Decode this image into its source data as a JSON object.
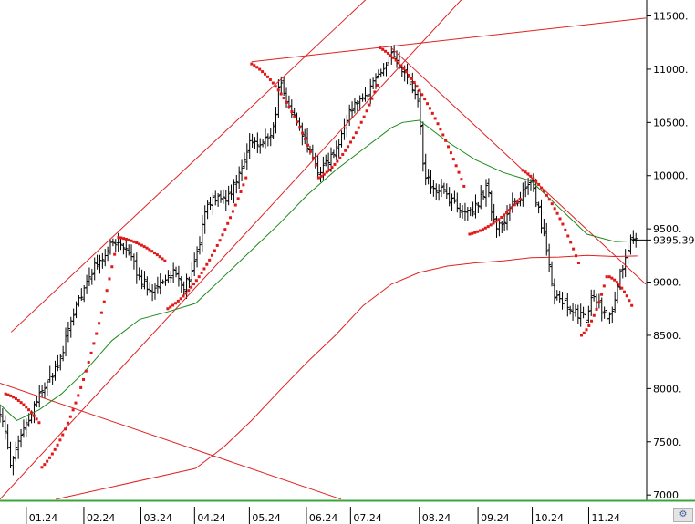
{
  "chart_data": {
    "type": "line",
    "price_label": "9395.39",
    "y_axis": {
      "ylim": [
        6950,
        11650
      ],
      "ticks": [
        {
          "value": 11500,
          "label": "11500."
        },
        {
          "value": 11000,
          "label": "11000."
        },
        {
          "value": 10500,
          "label": "10500."
        },
        {
          "value": 10000,
          "label": "10000."
        },
        {
          "value": 9500,
          "label": "9500."
        },
        {
          "value": 9000,
          "label": "9000."
        },
        {
          "value": 8500,
          "label": "8500."
        },
        {
          "value": 8000,
          "label": "8000."
        },
        {
          "value": 7500,
          "label": "7500."
        },
        {
          "value": 7000,
          "label": "7000"
        }
      ]
    },
    "x_axis": {
      "range_months": [
        0,
        11.55
      ],
      "ticks": [
        {
          "pos": 0.47,
          "label": "01.24"
        },
        {
          "pos": 1.5,
          "label": "02.24"
        },
        {
          "pos": 2.52,
          "label": "03.24"
        },
        {
          "pos": 3.48,
          "label": "04.24"
        },
        {
          "pos": 4.46,
          "label": "05.24"
        },
        {
          "pos": 5.48,
          "label": "06.24"
        },
        {
          "pos": 6.27,
          "label": "07.24"
        },
        {
          "pos": 7.5,
          "label": "08.24"
        },
        {
          "pos": 8.55,
          "label": "09.24"
        },
        {
          "pos": 9.52,
          "label": "10.24"
        },
        {
          "pos": 10.53,
          "label": "11.24"
        }
      ]
    },
    "price_keypoints": [
      [
        0.0,
        7780
      ],
      [
        0.1,
        7550
      ],
      [
        0.2,
        7280
      ],
      [
        0.35,
        7500
      ],
      [
        0.5,
        7700
      ],
      [
        0.7,
        7950
      ],
      [
        0.9,
        8100
      ],
      [
        1.1,
        8300
      ],
      [
        1.3,
        8700
      ],
      [
        1.5,
        8950
      ],
      [
        1.7,
        9150
      ],
      [
        1.9,
        9300
      ],
      [
        2.1,
        9380
      ],
      [
        2.3,
        9250
      ],
      [
        2.5,
        9050
      ],
      [
        2.7,
        8900
      ],
      [
        2.9,
        9000
      ],
      [
        3.1,
        9100
      ],
      [
        3.3,
        8950
      ],
      [
        3.5,
        9200
      ],
      [
        3.7,
        9700
      ],
      [
        3.9,
        9800
      ],
      [
        4.1,
        9800
      ],
      [
        4.3,
        10050
      ],
      [
        4.5,
        10350
      ],
      [
        4.7,
        10300
      ],
      [
        4.9,
        10450
      ],
      [
        5.0,
        10900
      ],
      [
        5.1,
        10700
      ],
      [
        5.3,
        10550
      ],
      [
        5.5,
        10250
      ],
      [
        5.7,
        10050
      ],
      [
        5.9,
        10150
      ],
      [
        6.1,
        10350
      ],
      [
        6.3,
        10650
      ],
      [
        6.5,
        10700
      ],
      [
        6.7,
        10900
      ],
      [
        6.9,
        11050
      ],
      [
        7.0,
        11150
      ],
      [
        7.1,
        11050
      ],
      [
        7.3,
        10900
      ],
      [
        7.45,
        10700
      ],
      [
        7.5,
        10650
      ],
      [
        7.55,
        10100
      ],
      [
        7.7,
        9900
      ],
      [
        7.9,
        9850
      ],
      [
        8.1,
        9750
      ],
      [
        8.3,
        9650
      ],
      [
        8.5,
        9700
      ],
      [
        8.7,
        9900
      ],
      [
        8.85,
        9550
      ],
      [
        9.0,
        9500
      ],
      [
        9.1,
        9700
      ],
      [
        9.3,
        9800
      ],
      [
        9.5,
        9900
      ],
      [
        9.6,
        9750
      ],
      [
        9.8,
        9250
      ],
      [
        9.9,
        8900
      ],
      [
        10.1,
        8800
      ],
      [
        10.3,
        8700
      ],
      [
        10.5,
        8650
      ],
      [
        10.6,
        8900
      ],
      [
        10.8,
        8700
      ],
      [
        10.9,
        8650
      ],
      [
        11.0,
        8850
      ],
      [
        11.2,
        9300
      ],
      [
        11.35,
        9450
      ],
      [
        11.4,
        9400
      ]
    ],
    "ma_short_points": [
      [
        0.0,
        7850
      ],
      [
        0.3,
        7700
      ],
      [
        0.7,
        7800
      ],
      [
        1.1,
        7950
      ],
      [
        1.5,
        8150
      ],
      [
        2.0,
        8450
      ],
      [
        2.5,
        8650
      ],
      [
        3.0,
        8720
      ],
      [
        3.5,
        8800
      ],
      [
        4.0,
        9050
      ],
      [
        4.5,
        9300
      ],
      [
        5.0,
        9550
      ],
      [
        5.5,
        9820
      ],
      [
        6.0,
        10050
      ],
      [
        6.5,
        10250
      ],
      [
        7.0,
        10450
      ],
      [
        7.2,
        10500
      ],
      [
        7.5,
        10520
      ],
      [
        8.0,
        10320
      ],
      [
        8.5,
        10150
      ],
      [
        9.0,
        10030
      ],
      [
        9.5,
        9950
      ],
      [
        10.0,
        9700
      ],
      [
        10.5,
        9450
      ],
      [
        11.0,
        9380
      ],
      [
        11.4,
        9390
      ]
    ],
    "ma_long_points": [
      [
        3.5,
        7250
      ],
      [
        4.0,
        7450
      ],
      [
        4.5,
        7700
      ],
      [
        5.0,
        7980
      ],
      [
        5.5,
        8250
      ],
      [
        6.0,
        8500
      ],
      [
        6.5,
        8780
      ],
      [
        7.0,
        8980
      ],
      [
        7.5,
        9090
      ],
      [
        8.0,
        9150
      ],
      [
        8.5,
        9180
      ],
      [
        9.0,
        9200
      ],
      [
        9.5,
        9230
      ],
      [
        10.0,
        9235
      ],
      [
        10.5,
        9250
      ],
      [
        11.0,
        9240
      ],
      [
        11.4,
        9245
      ]
    ],
    "sar_segments": [
      {
        "x0": 0.1,
        "x1": 0.7,
        "s0": 7950,
        "s1": 7680
      },
      {
        "x0": 0.75,
        "x1": 2.05,
        "s0": 7260,
        "s1": 9260
      },
      {
        "x0": 2.12,
        "x1": 2.95,
        "s0": 9420,
        "s1": 9200
      },
      {
        "x0": 3.0,
        "x1": 4.4,
        "s0": 8750,
        "s1": 9980
      },
      {
        "x0": 4.5,
        "x1": 5.65,
        "s0": 11050,
        "s1": 10100
      },
      {
        "x0": 5.7,
        "x1": 6.75,
        "s0": 9980,
        "s1": 10850
      },
      {
        "x0": 6.8,
        "x1": 8.3,
        "s0": 11200,
        "s1": 9900
      },
      {
        "x0": 8.4,
        "x1": 9.3,
        "s0": 9450,
        "s1": 9780
      },
      {
        "x0": 9.35,
        "x1": 10.35,
        "s0": 10050,
        "s1": 9180
      },
      {
        "x0": 10.4,
        "x1": 10.85,
        "s0": 8500,
        "s1": 9050
      },
      {
        "x0": 10.9,
        "x1": 11.3,
        "s0": 9050,
        "s1": 8780
      }
    ],
    "trendlines": [
      {
        "name": "upper-channel-line",
        "p1": [
          0.2,
          8530
        ],
        "p2": [
          6.8,
          11780
        ]
      },
      {
        "name": "lower-channel-line",
        "p1": [
          0.0,
          6960
        ],
        "p2": [
          8.6,
          11850
        ]
      },
      {
        "name": "resistance-line",
        "p1": [
          4.5,
          11070
        ],
        "p2": [
          11.55,
          11480
        ]
      },
      {
        "name": "falling-resistance-line",
        "p1": [
          7.0,
          11200
        ],
        "p2": [
          11.55,
          8980
        ]
      },
      {
        "name": "falling-support-line",
        "p1": [
          0.0,
          8050
        ],
        "p2": [
          6.1,
          6960
        ]
      },
      {
        "name": "lower-curve-line",
        "p1": [
          1.0,
          6960
        ],
        "p2": [
          3.5,
          7250
        ]
      }
    ]
  }
}
